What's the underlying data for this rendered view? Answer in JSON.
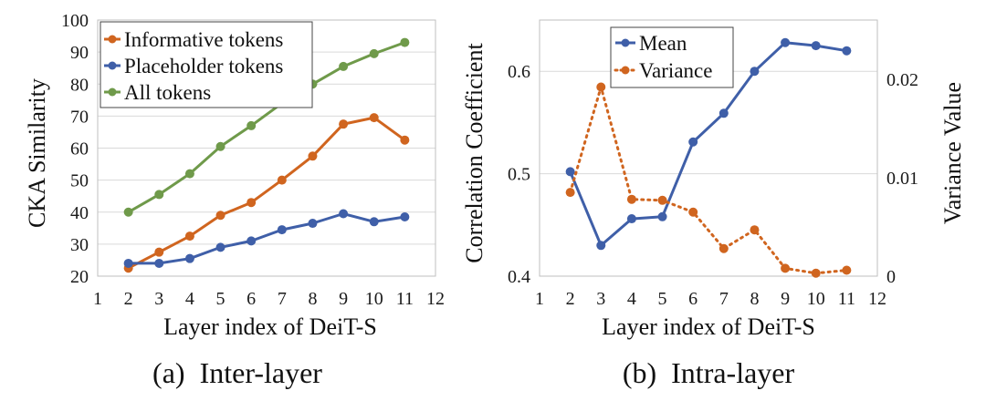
{
  "chart_data": [
    {
      "type": "line",
      "caption": "(a)  Inter-layer",
      "xlabel": "Layer index of DeiT-S",
      "ylabel": "CKA Similarity",
      "xlim": [
        1,
        12
      ],
      "ylim": [
        20,
        100
      ],
      "x_ticks": [
        1,
        2,
        3,
        4,
        5,
        6,
        7,
        8,
        9,
        10,
        11,
        12
      ],
      "y_ticks": [
        20,
        30,
        40,
        50,
        60,
        70,
        80,
        90,
        100
      ],
      "grid": "horizontal",
      "legend_position": "top-left",
      "x": [
        2,
        3,
        4,
        5,
        6,
        7,
        8,
        9,
        10,
        11
      ],
      "series": [
        {
          "name": "Informative tokens",
          "color": "#d0651f",
          "style": "solid",
          "values": [
            22.5,
            27.5,
            32.5,
            39,
            43,
            50,
            57.5,
            67.5,
            69.5,
            62.5
          ]
        },
        {
          "name": "Placeholder tokens",
          "color": "#3f5fa8",
          "style": "solid",
          "values": [
            24,
            24,
            25.5,
            29,
            31,
            34.5,
            36.5,
            39.5,
            37,
            38.5
          ]
        },
        {
          "name": "All tokens",
          "color": "#6f9a4a",
          "style": "solid",
          "values": [
            40,
            45.5,
            52,
            60.5,
            67,
            74,
            80,
            85.5,
            89.5,
            93
          ]
        }
      ]
    },
    {
      "type": "line",
      "caption": "(b)  Intra-layer",
      "xlabel": "Layer index of DeiT-S",
      "ylabel": "Correlation Coefficient",
      "y2label": "Variance Value",
      "xlim": [
        1,
        12
      ],
      "ylim": [
        0.4,
        0.65
      ],
      "y2lim": [
        0,
        0.026
      ],
      "x_ticks": [
        1,
        2,
        3,
        4,
        5,
        6,
        7,
        8,
        9,
        10,
        11,
        12
      ],
      "y_ticks": [
        0.4,
        0.5,
        0.6
      ],
      "y_tick_labels": [
        "0.4",
        "0.5",
        "0.6"
      ],
      "y2_ticks": [
        0,
        0.01,
        0.02
      ],
      "y2_tick_labels": [
        "0",
        "0.01",
        "0.02"
      ],
      "grid": "horizontal",
      "legend_position": "top-center",
      "x": [
        2,
        3,
        4,
        5,
        6,
        7,
        8,
        9,
        10,
        11
      ],
      "series": [
        {
          "name": "Mean",
          "axis": "left",
          "color": "#3f5fa8",
          "style": "solid",
          "values": [
            0.502,
            0.43,
            0.456,
            0.458,
            0.531,
            0.559,
            0.6,
            0.628,
            0.625,
            0.62
          ]
        },
        {
          "name": "Variance",
          "axis": "right",
          "color": "#d0651f",
          "style": "dotted",
          "values": [
            0.0085,
            0.0192,
            0.0078,
            0.0077,
            0.0065,
            0.0028,
            0.0047,
            0.0008,
            0.0003,
            0.0006
          ]
        }
      ]
    }
  ]
}
